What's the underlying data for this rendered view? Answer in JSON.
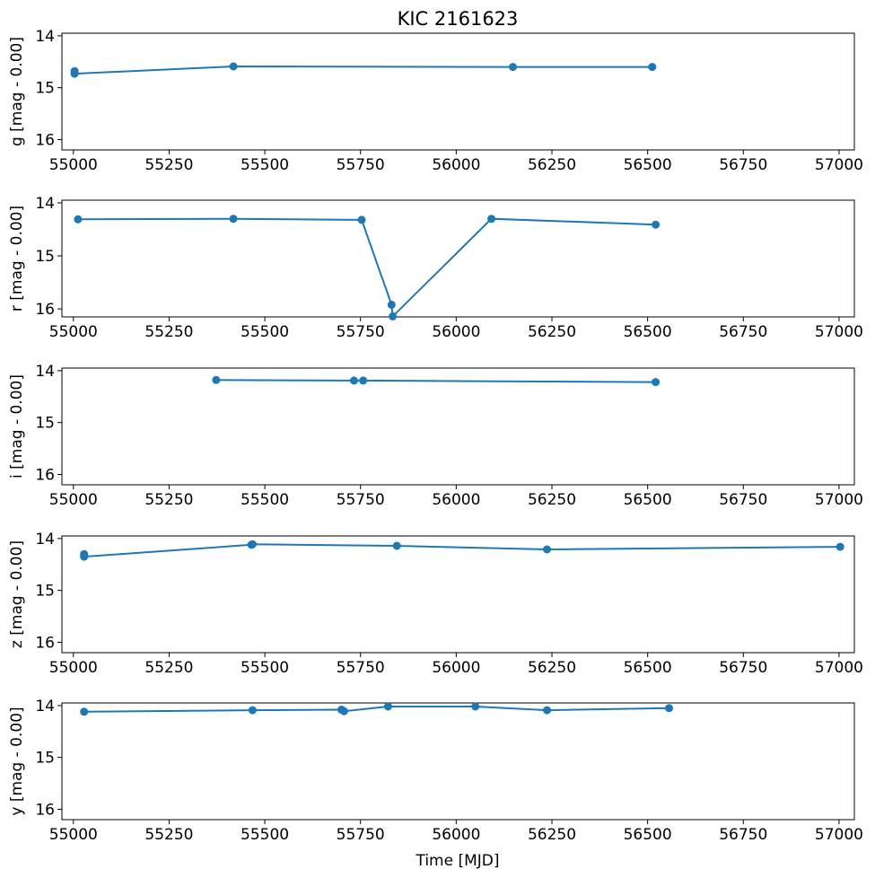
{
  "title": "KIC 2161623",
  "xlabel": "Time [MJD]",
  "color": "#1f77b4",
  "chart_data": [
    {
      "type": "line",
      "band": "g",
      "ylabel": "g [mag - 0.00]",
      "xlim": [
        54970,
        57040
      ],
      "ylim": [
        16.2,
        13.95
      ],
      "inverted_y": true,
      "x_ticks": [
        55000,
        55250,
        55500,
        55750,
        56000,
        56250,
        56500,
        56750,
        57000
      ],
      "y_ticks": [
        14,
        15,
        16
      ],
      "grid": false,
      "series": [
        {
          "x": [
            55003,
            55003,
            55418,
            56148,
            56512
          ],
          "y": [
            14.68,
            14.73,
            14.59,
            14.6,
            14.6
          ]
        }
      ]
    },
    {
      "type": "line",
      "band": "r",
      "ylabel": "r [mag - 0.00]",
      "xlim": [
        54970,
        57040
      ],
      "ylim": [
        16.15,
        13.95
      ],
      "inverted_y": true,
      "x_ticks": [
        55000,
        55250,
        55500,
        55750,
        56000,
        56250,
        56500,
        56750,
        57000
      ],
      "y_ticks": [
        14,
        15,
        16
      ],
      "grid": false,
      "series": [
        {
          "x": [
            55012,
            55418,
            55753,
            55831,
            55834,
            56092,
            56521
          ],
          "y": [
            14.31,
            14.3,
            14.32,
            15.92,
            16.14,
            14.3,
            14.41
          ]
        }
      ]
    },
    {
      "type": "line",
      "band": "i",
      "ylabel": "i [mag - 0.00]",
      "xlim": [
        54970,
        57040
      ],
      "ylim": [
        16.2,
        13.95
      ],
      "inverted_y": true,
      "x_ticks": [
        55000,
        55250,
        55500,
        55750,
        56000,
        56250,
        56500,
        56750,
        57000
      ],
      "y_ticks": [
        14,
        15,
        16
      ],
      "grid": false,
      "series": [
        {
          "x": [
            55373,
            55733,
            55757,
            56521
          ],
          "y": [
            14.18,
            14.19,
            14.19,
            14.22
          ]
        }
      ]
    },
    {
      "type": "line",
      "band": "z",
      "ylabel": "z [mag - 0.00]",
      "xlim": [
        54970,
        57040
      ],
      "ylim": [
        16.2,
        13.95
      ],
      "inverted_y": true,
      "x_ticks": [
        55000,
        55250,
        55500,
        55750,
        56000,
        56250,
        56500,
        56750,
        57000
      ],
      "y_ticks": [
        14,
        15,
        16
      ],
      "grid": false,
      "series": [
        {
          "x": [
            55028,
            55028,
            55465,
            55468,
            55845,
            56237,
            57003
          ],
          "y": [
            14.3,
            14.35,
            14.12,
            14.11,
            14.14,
            14.21,
            14.16
          ]
        }
      ]
    },
    {
      "type": "line",
      "band": "y",
      "ylabel": "y [mag - 0.00]",
      "xlim": [
        54970,
        57040
      ],
      "ylim": [
        16.2,
        13.95
      ],
      "inverted_y": true,
      "x_ticks": [
        55000,
        55250,
        55500,
        55750,
        56000,
        56250,
        56500,
        56750,
        57000
      ],
      "y_ticks": [
        14,
        15,
        16
      ],
      "grid": false,
      "series": [
        {
          "x": [
            55028,
            55468,
            55700,
            55707,
            55822,
            56050,
            56237,
            56556
          ],
          "y": [
            14.12,
            14.09,
            14.08,
            14.11,
            14.02,
            14.02,
            14.09,
            14.05
          ]
        }
      ]
    }
  ]
}
